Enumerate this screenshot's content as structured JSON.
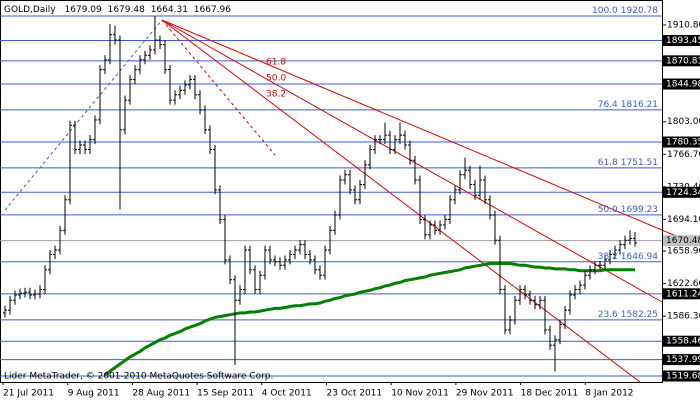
{
  "chart_data": {
    "type": "ohlc",
    "title": "GOLD,Daily",
    "header_ohlc": [
      1679.09,
      1679.48,
      1664.31,
      1667.96
    ],
    "bar_color": "#000000",
    "ma_color": "#008000",
    "fib_color": "#3a5fcd",
    "level_color": "#3a5fcd",
    "fan_color": "#e00000",
    "open": [
      1590,
      1593,
      1604,
      1610,
      1612,
      1613,
      1610,
      1611,
      1616,
      1638,
      1655,
      1660,
      1682,
      1716,
      1799,
      1772,
      1777,
      1772,
      1783,
      1805,
      1861,
      1872,
      1900,
      1894,
      1794,
      1827,
      1850,
      1861,
      1872,
      1877,
      1883,
      1894,
      1889,
      1861,
      1827,
      1833,
      1838,
      1844,
      1850,
      1833,
      1816,
      1794,
      1772,
      1727,
      1694,
      1649,
      1627,
      1604,
      1616,
      1660,
      1638,
      1616,
      1632,
      1660,
      1649,
      1647,
      1643,
      1649,
      1655,
      1660,
      1666,
      1655,
      1649,
      1638,
      1632,
      1660,
      1682,
      1699,
      1738,
      1744,
      1727,
      1716,
      1733,
      1755,
      1772,
      1783,
      1783,
      1788,
      1772,
      1783,
      1788,
      1777,
      1760,
      1738,
      1694,
      1677,
      1688,
      1682,
      1688,
      1694,
      1716,
      1727,
      1744,
      1749,
      1733,
      1721,
      1738,
      1716,
      1699,
      1671,
      1616,
      1571,
      1582,
      1604,
      1616,
      1610,
      1604,
      1599,
      1604,
      1571,
      1554,
      1560,
      1577,
      1593,
      1610,
      1616,
      1621,
      1632,
      1638,
      1643,
      1643,
      1649,
      1655,
      1660,
      1666,
      1671,
      1673
    ],
    "high": [
      1598,
      1609,
      1615,
      1617,
      1618,
      1618,
      1616,
      1621,
      1643,
      1660,
      1665,
      1687,
      1721,
      1804,
      1804,
      1782,
      1782,
      1788,
      1810,
      1866,
      1877,
      1912,
      1910,
      1899,
      1832,
      1855,
      1866,
      1877,
      1882,
      1888,
      1920.78,
      1899,
      1894,
      1866,
      1838,
      1843,
      1849,
      1855,
      1855,
      1838,
      1821,
      1799,
      1777,
      1732,
      1699,
      1654,
      1632,
      1621,
      1665,
      1665,
      1643,
      1637,
      1665,
      1665,
      1654,
      1652,
      1654,
      1660,
      1665,
      1671,
      1671,
      1660,
      1654,
      1643,
      1665,
      1687,
      1704,
      1743,
      1749,
      1749,
      1732,
      1738,
      1760,
      1777,
      1788,
      1788,
      1802,
      1793,
      1788,
      1802,
      1793,
      1782,
      1765,
      1743,
      1699,
      1693,
      1693,
      1693,
      1699,
      1721,
      1732,
      1749,
      1763,
      1754,
      1738,
      1754,
      1743,
      1721,
      1704,
      1676,
      1621,
      1587,
      1609,
      1621,
      1621,
      1615,
      1609,
      1609,
      1609,
      1576,
      1565,
      1582,
      1598,
      1615,
      1621,
      1626,
      1637,
      1643,
      1648,
      1648,
      1654,
      1660,
      1665,
      1671,
      1676,
      1682,
      1680
    ],
    "low": [
      1585,
      1588,
      1599,
      1605,
      1607,
      1605,
      1605,
      1606,
      1611,
      1633,
      1650,
      1655,
      1677,
      1711,
      1767,
      1767,
      1767,
      1767,
      1778,
      1800,
      1856,
      1867,
      1889,
      1705,
      1789,
      1822,
      1845,
      1856,
      1867,
      1872,
      1878,
      1884,
      1856,
      1822,
      1822,
      1828,
      1833,
      1839,
      1828,
      1811,
      1789,
      1767,
      1722,
      1689,
      1644,
      1622,
      1532,
      1599,
      1611,
      1633,
      1611,
      1611,
      1627,
      1644,
      1642,
      1638,
      1638,
      1644,
      1650,
      1655,
      1650,
      1644,
      1633,
      1627,
      1627,
      1655,
      1677,
      1694,
      1733,
      1722,
      1711,
      1711,
      1728,
      1750,
      1767,
      1778,
      1778,
      1767,
      1767,
      1778,
      1772,
      1755,
      1733,
      1689,
      1672,
      1672,
      1677,
      1677,
      1683,
      1689,
      1711,
      1722,
      1739,
      1728,
      1716,
      1716,
      1711,
      1694,
      1666,
      1611,
      1566,
      1566,
      1577,
      1599,
      1605,
      1599,
      1594,
      1594,
      1566,
      1549,
      1525,
      1555,
      1572,
      1588,
      1605,
      1611,
      1616,
      1627,
      1633,
      1638,
      1638,
      1644,
      1650,
      1655,
      1661,
      1666,
      1664
    ],
    "close": [
      1593,
      1604,
      1610,
      1612,
      1613,
      1610,
      1611,
      1616,
      1638,
      1655,
      1660,
      1682,
      1716,
      1799,
      1772,
      1777,
      1772,
      1783,
      1805,
      1861,
      1872,
      1900,
      1894,
      1794,
      1827,
      1850,
      1861,
      1872,
      1877,
      1883,
      1894,
      1889,
      1861,
      1827,
      1833,
      1838,
      1844,
      1850,
      1833,
      1816,
      1794,
      1772,
      1727,
      1694,
      1649,
      1627,
      1604,
      1616,
      1660,
      1638,
      1616,
      1632,
      1660,
      1649,
      1647,
      1643,
      1649,
      1655,
      1660,
      1666,
      1655,
      1649,
      1638,
      1632,
      1660,
      1682,
      1699,
      1738,
      1744,
      1727,
      1716,
      1733,
      1755,
      1772,
      1783,
      1783,
      1788,
      1772,
      1783,
      1788,
      1777,
      1760,
      1738,
      1694,
      1677,
      1688,
      1682,
      1688,
      1694,
      1716,
      1727,
      1744,
      1749,
      1733,
      1721,
      1738,
      1716,
      1699,
      1671,
      1616,
      1571,
      1582,
      1604,
      1616,
      1610,
      1604,
      1599,
      1604,
      1571,
      1554,
      1560,
      1577,
      1593,
      1610,
      1616,
      1621,
      1632,
      1638,
      1643,
      1643,
      1649,
      1655,
      1660,
      1666,
      1671,
      1673,
      1668
    ],
    "ma": [
      null,
      null,
      null,
      null,
      null,
      null,
      null,
      null,
      null,
      null,
      null,
      null,
      null,
      null,
      null,
      null,
      null,
      null,
      null,
      null,
      1521,
      1525,
      1529,
      1533,
      1537,
      1541,
      1544,
      1547,
      1551,
      1554,
      1557,
      1560,
      1562,
      1565,
      1567,
      1569,
      1572,
      1574,
      1576,
      1578,
      1581,
      1583,
      1585,
      1586,
      1587,
      1588,
      1589,
      1590,
      1590,
      1591,
      1591,
      1592,
      1593,
      1594,
      1595,
      1595,
      1596,
      1597,
      1598,
      1598,
      1599,
      1600,
      1600,
      1601,
      1603,
      1604,
      1606,
      1607,
      1609,
      1610,
      1611,
      1613,
      1614,
      1615,
      1617,
      1618,
      1620,
      1621,
      1623,
      1624,
      1626,
      1627,
      1628,
      1629,
      1630,
      1632,
      1633,
      1634,
      1635,
      1636,
      1637,
      1638,
      1640,
      1641,
      1642,
      1643,
      1644,
      1645,
      1645,
      1645,
      1645,
      1645,
      1644,
      1643,
      1643,
      1642,
      1641,
      1641,
      1640,
      1640,
      1639,
      1639,
      1639,
      1638,
      1638,
      1637,
      1637,
      1637,
      1637,
      1637,
      1638,
      1638,
      1638,
      1638,
      1638,
      1638,
      1638
    ],
    "ylim": [
      1513.0,
      1938.6
    ],
    "yticks": [
      {
        "value": 1910.8,
        "label": "1910.80"
      },
      {
        "value": 1803,
        "label": "1803.00"
      },
      {
        "value": 1766.7,
        "label": "1766.70"
      },
      {
        "value": 1730.4,
        "label": "1730.40"
      },
      {
        "value": 1694.1,
        "label": "1694.10"
      },
      {
        "value": 1658.9,
        "label": "1658.90"
      },
      {
        "value": 1622.6,
        "label": "1622.60"
      },
      {
        "value": 1586.3,
        "label": "1586.30"
      }
    ],
    "xtick_labels": [
      "21 Jul 2011",
      "9 Aug 2011",
      "28 Aug 2011",
      "15 Sep 2011",
      "4 Oct 2011",
      "23 Oct 2011",
      "10 Nov 2011",
      "29 Nov 2011",
      "18 Dec 2011",
      "8 Jan 2012"
    ],
    "fib": [
      {
        "level": "100.0",
        "price": 1920.78
      },
      {
        "level": "76.4",
        "price": 1816.21
      },
      {
        "level": "61.8",
        "price": 1751.51
      },
      {
        "level": "50.0",
        "price": 1699.23
      },
      {
        "level": "38.2",
        "price": 1646.94
      },
      {
        "level": "23.6",
        "price": 1582.25
      }
    ],
    "levels": [
      1893.45,
      1870.83,
      1844.98,
      1780.35,
      1724.34,
      1611.24,
      1558.46,
      1537.99,
      1519.68
    ],
    "current_price": 1670.48,
    "fan_labels": [
      "61.8",
      "50.0",
      "38.2"
    ],
    "footer": "Lider MetaTrader, © 2001-2010 MetaQuotes Software Corp."
  }
}
